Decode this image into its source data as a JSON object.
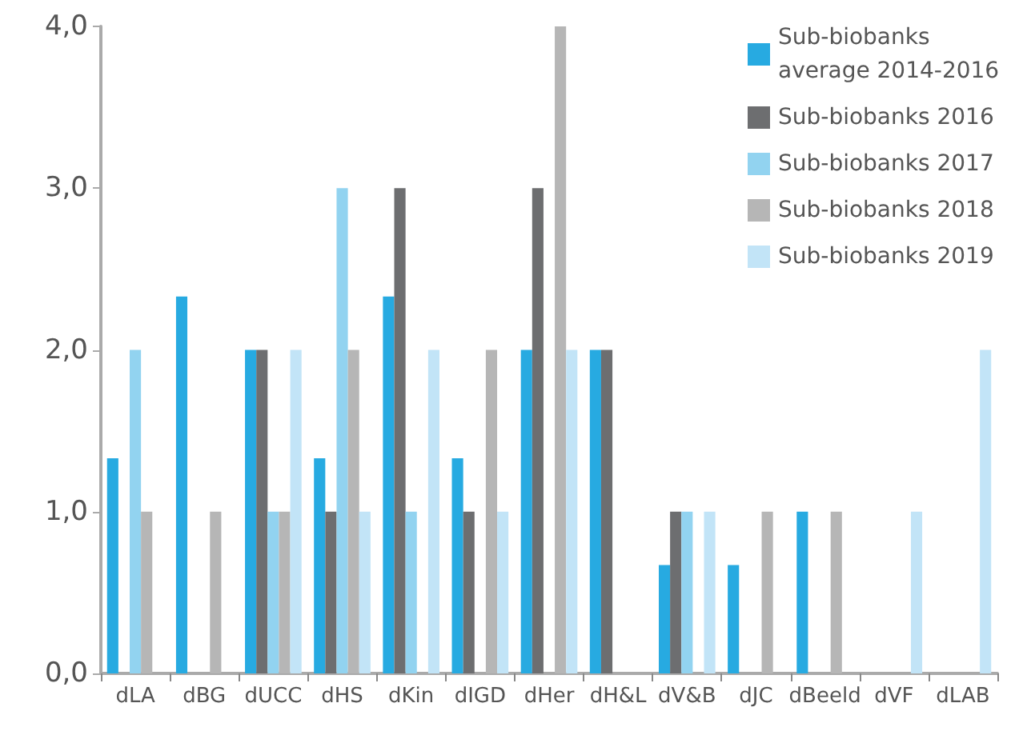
{
  "chart_data": {
    "type": "bar",
    "categories": [
      "dLA",
      "dBG",
      "dUCC",
      "dHS",
      "dKin",
      "dIGD",
      "dHer",
      "dH&L",
      "dV&B",
      "dJC",
      "dBeeld",
      "dVF",
      "dLAB"
    ],
    "series": [
      {
        "name": "Sub-biobanks average 2014-2016",
        "color": "#27aae1",
        "values": [
          1.33,
          2.33,
          2,
          1.33,
          2.33,
          1.33,
          2,
          2,
          0.67,
          0.67,
          1,
          null,
          null
        ]
      },
      {
        "name": "Sub-biobanks 2016",
        "color": "#6d6e70",
        "values": [
          null,
          null,
          2,
          1,
          3,
          1,
          3,
          2,
          1,
          null,
          null,
          null,
          null
        ]
      },
      {
        "name": "Sub-biobanks 2017",
        "color": "#92d3f0",
        "values": [
          2,
          null,
          1,
          3,
          1,
          null,
          null,
          null,
          1,
          null,
          null,
          null,
          null
        ]
      },
      {
        "name": "Sub-biobanks 2018",
        "color": "#b6b6b6",
        "values": [
          1,
          1,
          1,
          2,
          null,
          2,
          4,
          null,
          null,
          1,
          1,
          null,
          null
        ]
      },
      {
        "name": "Sub-biobanks 2019",
        "color": "#c2e4f7",
        "values": [
          null,
          null,
          2,
          1,
          2,
          1,
          2,
          null,
          1,
          null,
          null,
          1,
          2
        ]
      }
    ],
    "ylim": [
      0,
      4
    ],
    "yticks": [
      {
        "value": 0,
        "label": "0,0"
      },
      {
        "value": 1,
        "label": "1,0"
      },
      {
        "value": 2,
        "label": "2,0"
      },
      {
        "value": 3,
        "label": "3,0"
      },
      {
        "value": 4,
        "label": "4,0"
      }
    ],
    "grid": false,
    "legend": "top right"
  }
}
